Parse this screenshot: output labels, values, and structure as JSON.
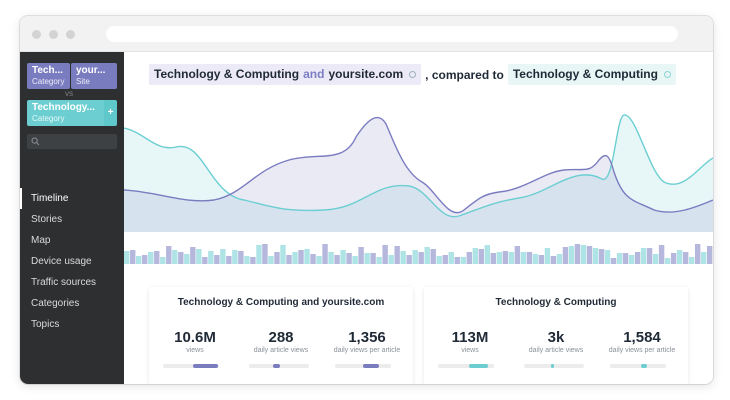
{
  "colors": {
    "purple": "#7a7cc0",
    "teal": "#6cced1",
    "sidebar_bg": "#2d2f31",
    "text_dark": "#1f2a36"
  },
  "sidebar": {
    "chip_a": {
      "title": "Tech...",
      "subtitle": "Category"
    },
    "chip_b": {
      "title": "your...",
      "subtitle": "Site"
    },
    "vs_label": "VS",
    "chip_c": {
      "title": "Technology...",
      "subtitle": "Category"
    },
    "add_label": "+",
    "search_icon": "search-icon",
    "nav": [
      {
        "label": "Timeline",
        "active": true
      },
      {
        "label": "Stories",
        "active": false
      },
      {
        "label": "Map",
        "active": false
      },
      {
        "label": "Device usage",
        "active": false
      },
      {
        "label": "Traffic sources",
        "active": false
      },
      {
        "label": "Categories",
        "active": false
      },
      {
        "label": "Topics",
        "active": false
      }
    ]
  },
  "header": {
    "primary_a": "Technology & Computing",
    "primary_and": "and",
    "primary_b": "yoursite.com",
    "compared_to": ", compared to",
    "secondary": "Technology & Computing"
  },
  "panels": [
    {
      "title": "Technology & Computing and yoursite.com",
      "color": "#7a7cc0",
      "stats": [
        {
          "value": "10.6M",
          "label": "views",
          "level": [
            0.53,
            0.98
          ]
        },
        {
          "value": "288",
          "label": "daily article views",
          "level": [
            0.4,
            0.52
          ]
        },
        {
          "value": "1,356",
          "label": "daily views per article",
          "level": [
            0.5,
            0.78
          ]
        }
      ]
    },
    {
      "title": "Technology & Computing",
      "color": "#6cced1",
      "stats": [
        {
          "value": "113M",
          "label": "views",
          "level": [
            0.55,
            0.9
          ]
        },
        {
          "value": "3k",
          "label": "daily article views",
          "level": [
            0.45,
            0.5
          ]
        },
        {
          "value": "1,584",
          "label": "daily views per article",
          "level": [
            0.55,
            0.66
          ]
        }
      ]
    }
  ]
}
